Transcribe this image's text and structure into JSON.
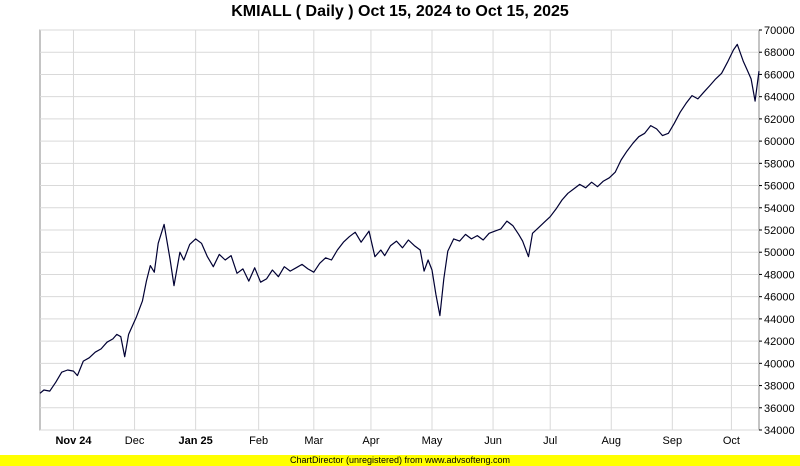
{
  "title": "KMIALL ( Daily ) Oct 15, 2024 to Oct 15, 2025",
  "footer": "ChartDirector (unregistered) from www.advsofteng.com",
  "colors": {
    "line": "#000033",
    "grid": "#d9d9d9",
    "footer_bg": "#ffff00"
  },
  "chart_data": {
    "type": "line",
    "title": "KMIALL ( Daily ) Oct 15, 2024 to Oct 15, 2025",
    "xlabel": "",
    "ylabel": "",
    "x_range": [
      "2024-10-15",
      "2025-10-15"
    ],
    "ylim": [
      34000,
      70000
    ],
    "y_ticks": [
      34000,
      36000,
      38000,
      40000,
      42000,
      44000,
      46000,
      48000,
      50000,
      52000,
      54000,
      56000,
      58000,
      60000,
      62000,
      64000,
      66000,
      68000,
      70000
    ],
    "x_ticks": [
      {
        "label": "Nov 24",
        "date": "2024-11-01",
        "bold": true
      },
      {
        "label": "Dec",
        "date": "2024-12-02",
        "bold": false
      },
      {
        "label": "Jan 25",
        "date": "2025-01-02",
        "bold": true
      },
      {
        "label": "Feb",
        "date": "2025-02-03",
        "bold": false
      },
      {
        "label": "Mar",
        "date": "2025-03-03",
        "bold": false
      },
      {
        "label": "Apr",
        "date": "2025-04-01",
        "bold": false
      },
      {
        "label": "May",
        "date": "2025-05-02",
        "bold": false
      },
      {
        "label": "Jun",
        "date": "2025-06-02",
        "bold": false
      },
      {
        "label": "Jul",
        "date": "2025-07-01",
        "bold": false
      },
      {
        "label": "Aug",
        "date": "2025-08-01",
        "bold": false
      },
      {
        "label": "Sep",
        "date": "2025-09-01",
        "bold": false
      },
      {
        "label": "Oct",
        "date": "2025-10-01",
        "bold": false
      }
    ],
    "grid": true,
    "y_axis_side": "right",
    "series": [
      {
        "points": [
          [
            "2024-10-15",
            37300
          ],
          [
            "2024-10-17",
            37600
          ],
          [
            "2024-10-20",
            37500
          ],
          [
            "2024-10-23",
            38300
          ],
          [
            "2024-10-26",
            39200
          ],
          [
            "2024-10-29",
            39400
          ],
          [
            "2024-11-01",
            39300
          ],
          [
            "2024-11-03",
            38900
          ],
          [
            "2024-11-06",
            40200
          ],
          [
            "2024-11-09",
            40500
          ],
          [
            "2024-11-12",
            41000
          ],
          [
            "2024-11-15",
            41300
          ],
          [
            "2024-11-18",
            41900
          ],
          [
            "2024-11-21",
            42200
          ],
          [
            "2024-11-23",
            42600
          ],
          [
            "2024-11-25",
            42400
          ],
          [
            "2024-11-27",
            40600
          ],
          [
            "2024-11-29",
            42600
          ],
          [
            "2024-12-03",
            44200
          ],
          [
            "2024-12-06",
            45600
          ],
          [
            "2024-12-08",
            47400
          ],
          [
            "2024-12-10",
            48800
          ],
          [
            "2024-12-12",
            48200
          ],
          [
            "2024-12-14",
            50800
          ],
          [
            "2024-12-17",
            52500
          ],
          [
            "2024-12-20",
            49400
          ],
          [
            "2024-12-22",
            47000
          ],
          [
            "2024-12-25",
            50000
          ],
          [
            "2024-12-27",
            49300
          ],
          [
            "2024-12-30",
            50700
          ],
          [
            "2025-01-02",
            51200
          ],
          [
            "2025-01-05",
            50800
          ],
          [
            "2025-01-08",
            49600
          ],
          [
            "2025-01-11",
            48700
          ],
          [
            "2025-01-14",
            49800
          ],
          [
            "2025-01-17",
            49300
          ],
          [
            "2025-01-20",
            49700
          ],
          [
            "2025-01-23",
            48100
          ],
          [
            "2025-01-26",
            48500
          ],
          [
            "2025-01-29",
            47400
          ],
          [
            "2025-02-01",
            48600
          ],
          [
            "2025-02-04",
            47300
          ],
          [
            "2025-02-07",
            47600
          ],
          [
            "2025-02-10",
            48400
          ],
          [
            "2025-02-13",
            47800
          ],
          [
            "2025-02-16",
            48700
          ],
          [
            "2025-02-19",
            48300
          ],
          [
            "2025-02-22",
            48600
          ],
          [
            "2025-02-25",
            48900
          ],
          [
            "2025-02-28",
            48500
          ],
          [
            "2025-03-03",
            48200
          ],
          [
            "2025-03-06",
            49000
          ],
          [
            "2025-03-09",
            49500
          ],
          [
            "2025-03-12",
            49300
          ],
          [
            "2025-03-15",
            50200
          ],
          [
            "2025-03-18",
            50900
          ],
          [
            "2025-03-21",
            51400
          ],
          [
            "2025-03-24",
            51800
          ],
          [
            "2025-03-27",
            50900
          ],
          [
            "2025-03-31",
            51900
          ],
          [
            "2025-04-03",
            49600
          ],
          [
            "2025-04-06",
            50200
          ],
          [
            "2025-04-08",
            49700
          ],
          [
            "2025-04-11",
            50600
          ],
          [
            "2025-04-14",
            51000
          ],
          [
            "2025-04-17",
            50400
          ],
          [
            "2025-04-20",
            51100
          ],
          [
            "2025-04-23",
            50600
          ],
          [
            "2025-04-26",
            50200
          ],
          [
            "2025-04-28",
            48300
          ],
          [
            "2025-04-30",
            49300
          ],
          [
            "2025-05-02",
            48400
          ],
          [
            "2025-05-04",
            46200
          ],
          [
            "2025-05-06",
            44300
          ],
          [
            "2025-05-08",
            47600
          ],
          [
            "2025-05-10",
            50100
          ],
          [
            "2025-05-13",
            51200
          ],
          [
            "2025-05-16",
            51000
          ],
          [
            "2025-05-19",
            51600
          ],
          [
            "2025-05-22",
            51200
          ],
          [
            "2025-05-25",
            51500
          ],
          [
            "2025-05-28",
            51100
          ],
          [
            "2025-05-31",
            51700
          ],
          [
            "2025-06-03",
            51900
          ],
          [
            "2025-06-06",
            52100
          ],
          [
            "2025-06-09",
            52800
          ],
          [
            "2025-06-12",
            52400
          ],
          [
            "2025-06-15",
            51600
          ],
          [
            "2025-06-17",
            51000
          ],
          [
            "2025-06-20",
            49600
          ],
          [
            "2025-06-22",
            51700
          ],
          [
            "2025-06-25",
            52200
          ],
          [
            "2025-06-28",
            52700
          ],
          [
            "2025-07-01",
            53200
          ],
          [
            "2025-07-04",
            53900
          ],
          [
            "2025-07-07",
            54700
          ],
          [
            "2025-07-10",
            55300
          ],
          [
            "2025-07-13",
            55700
          ],
          [
            "2025-07-16",
            56100
          ],
          [
            "2025-07-19",
            55800
          ],
          [
            "2025-07-22",
            56300
          ],
          [
            "2025-07-25",
            55900
          ],
          [
            "2025-07-28",
            56400
          ],
          [
            "2025-07-31",
            56700
          ],
          [
            "2025-08-03",
            57200
          ],
          [
            "2025-08-06",
            58300
          ],
          [
            "2025-08-09",
            59100
          ],
          [
            "2025-08-12",
            59800
          ],
          [
            "2025-08-15",
            60400
          ],
          [
            "2025-08-18",
            60700
          ],
          [
            "2025-08-21",
            61400
          ],
          [
            "2025-08-24",
            61100
          ],
          [
            "2025-08-27",
            60500
          ],
          [
            "2025-08-30",
            60700
          ],
          [
            "2025-09-02",
            61600
          ],
          [
            "2025-09-05",
            62600
          ],
          [
            "2025-09-08",
            63400
          ],
          [
            "2025-09-11",
            64100
          ],
          [
            "2025-09-14",
            63800
          ],
          [
            "2025-09-17",
            64400
          ],
          [
            "2025-09-20",
            65000
          ],
          [
            "2025-09-23",
            65600
          ],
          [
            "2025-09-26",
            66100
          ],
          [
            "2025-09-29",
            67100
          ],
          [
            "2025-10-02",
            68200
          ],
          [
            "2025-10-04",
            68700
          ],
          [
            "2025-10-07",
            67200
          ],
          [
            "2025-10-09",
            66400
          ],
          [
            "2025-10-11",
            65600
          ],
          [
            "2025-10-13",
            63600
          ],
          [
            "2025-10-15",
            66300
          ]
        ]
      }
    ]
  }
}
